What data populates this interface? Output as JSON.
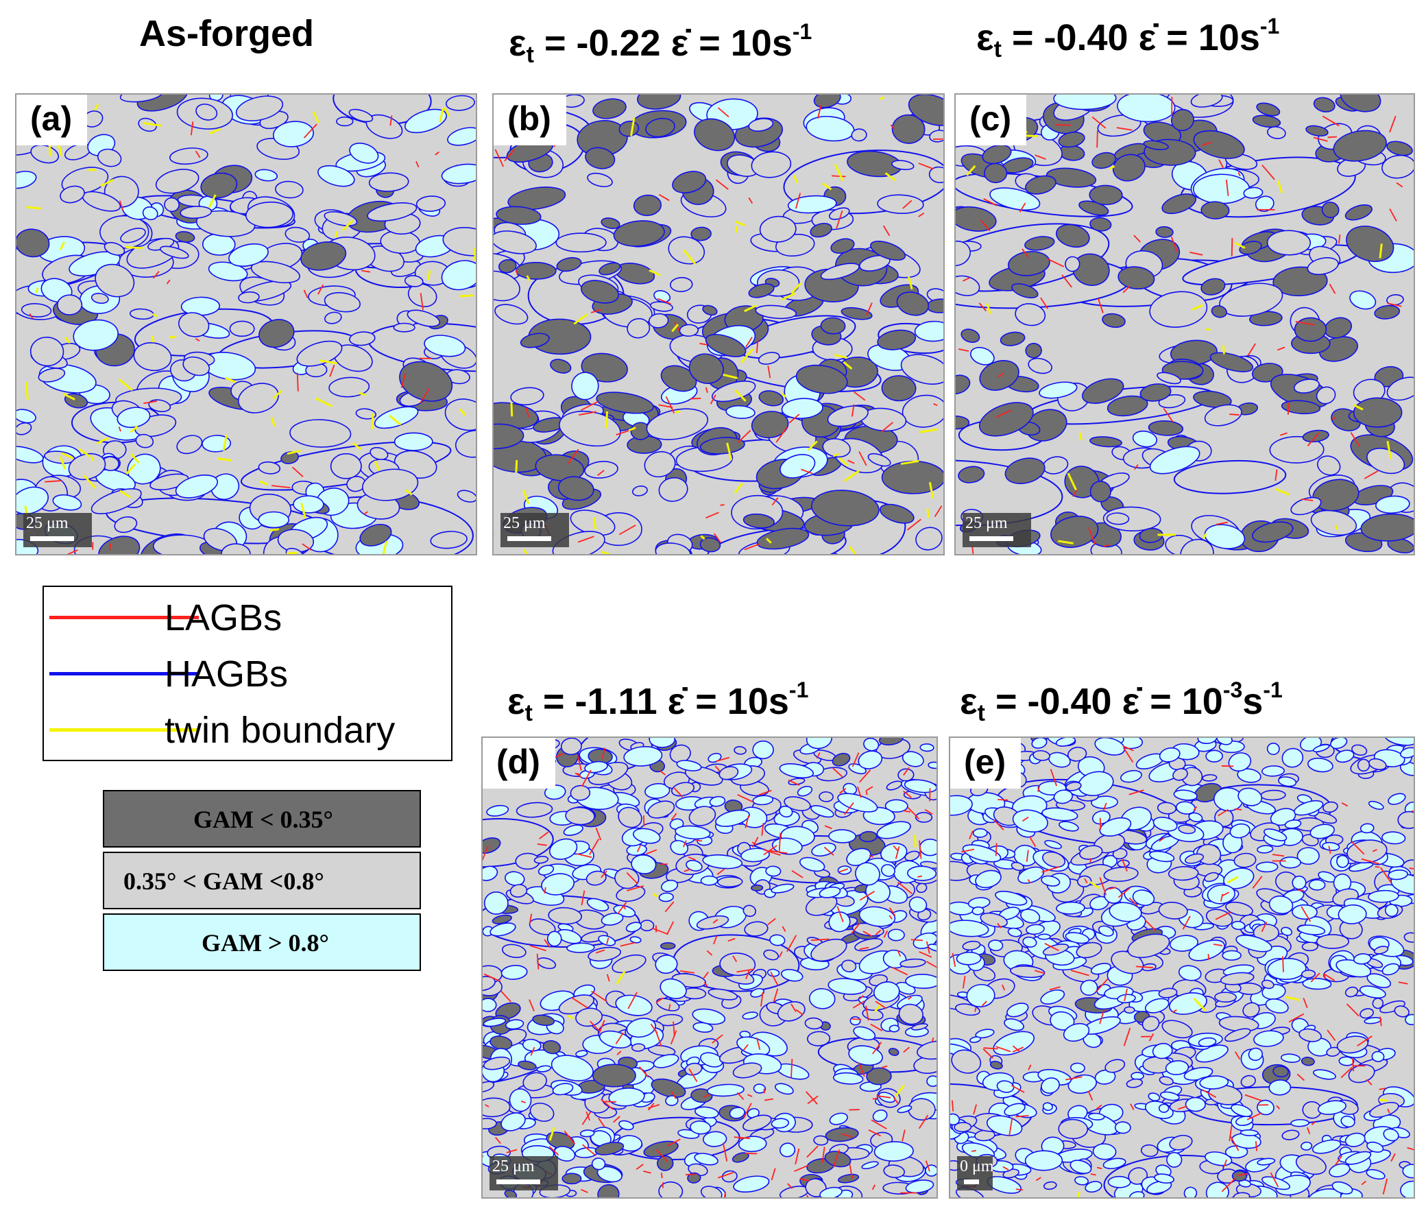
{
  "titles": {
    "a": "As-forged",
    "b": {
      "eps": "ε",
      "sub": "t",
      "strain": " = -0.22  ",
      "rate": "ε̇ = 10s",
      "exp": "-1"
    },
    "c": {
      "eps": "ε",
      "sub": "t",
      "strain": " = -0.40  ",
      "rate": "ε̇ = 10s",
      "exp": "-1"
    },
    "d": {
      "eps": "ε",
      "sub": "t",
      "strain": " = -1.11  ",
      "rate": "ε̇ = 10s",
      "exp": "-1"
    },
    "e": {
      "eps": "ε",
      "sub": "t",
      "strain": " = -0.40  ",
      "rate": "ε̇ = 10",
      "exp": "-3",
      "unit": "s",
      "exp2": "-1"
    }
  },
  "panels": [
    {
      "id": "a",
      "label": "(a)",
      "scale": "25 μm"
    },
    {
      "id": "b",
      "label": "(b)",
      "scale": "25 μm"
    },
    {
      "id": "c",
      "label": "(c)",
      "scale": "25 μm"
    },
    {
      "id": "d",
      "label": "(d)",
      "scale": "25 μm"
    },
    {
      "id": "e",
      "label": "(e)",
      "scale": "0 μm"
    }
  ],
  "legend": {
    "lagb": {
      "label": "LAGBs",
      "color": "#ff2020"
    },
    "hagb": {
      "label": "HAGBs",
      "color": "#1010ee"
    },
    "twin": {
      "label": "twin boundary",
      "color": "#f4f400"
    }
  },
  "gam": [
    {
      "label": "GAM < 0.35°",
      "color": "#6e6e6e"
    },
    {
      "label": "0.35°  < GAM  <0.8°",
      "color": "#d4d4d4"
    },
    {
      "label": "GAM > 0.8°",
      "color": "#cffcff"
    }
  ]
}
